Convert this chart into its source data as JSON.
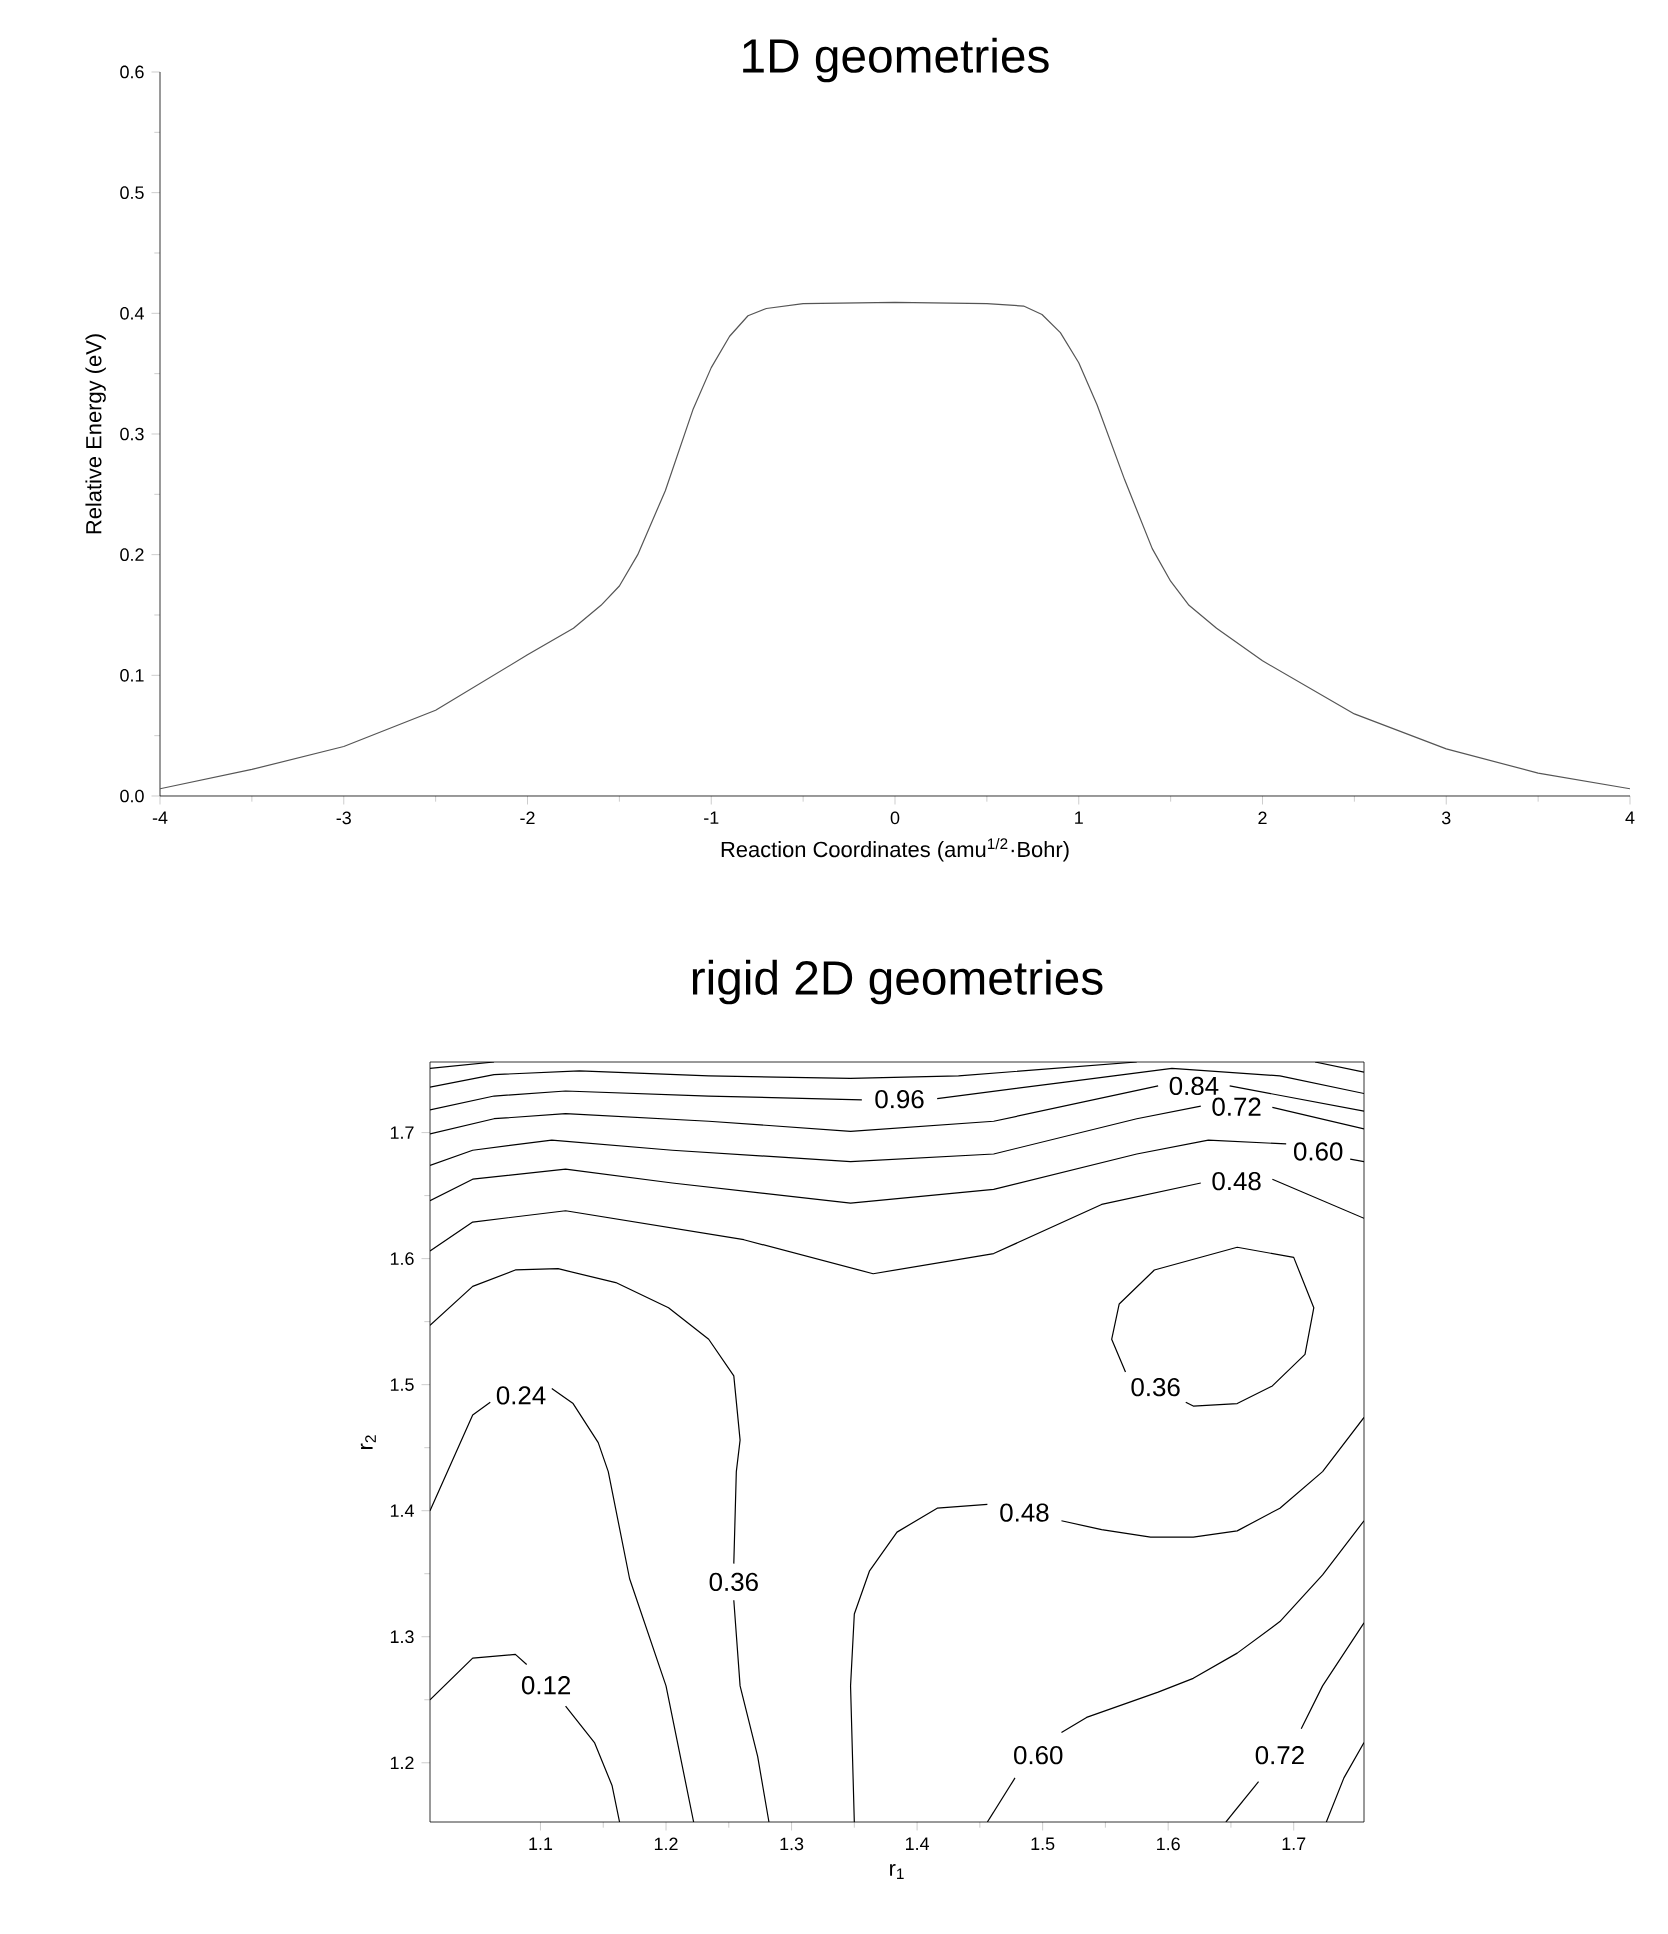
{
  "chart_data": [
    {
      "type": "line",
      "title": "1D geometries",
      "xlabel": "Reaction Coordinates (amu$^{1/2}$·Bohr)",
      "ylabel": "Relative Energy (eV)",
      "xlim": [
        -4,
        4
      ],
      "ylim": [
        0,
        0.6
      ],
      "xticks": [
        -4,
        -3,
        -2,
        -1,
        0,
        1,
        2,
        3,
        4
      ],
      "yticks": [
        {
          "value": 0,
          "label": "0.0"
        },
        0.1,
        0.2,
        0.3,
        0.4,
        0.5,
        0.6
      ],
      "series": [
        {
          "color": "#555555",
          "x": [
            -4,
            -3.5,
            -3,
            -2.5,
            -2,
            -1.75,
            -1.6,
            -1.5,
            -1.4,
            -1.25,
            -1.1,
            -1,
            -0.9,
            -0.8,
            -0.7,
            -0.5,
            0,
            0.5,
            0.7,
            0.8,
            0.9,
            1,
            1.1,
            1.25,
            1.4,
            1.5,
            1.6,
            1.75,
            2,
            2.5,
            3,
            3.5,
            4
          ],
          "values": [
            0.006,
            0.022,
            0.041,
            0.071,
            0.117,
            0.139,
            0.158,
            0.174,
            0.2,
            0.253,
            0.32,
            0.355,
            0.381,
            0.398,
            0.404,
            0.408,
            0.409,
            0.408,
            0.406,
            0.399,
            0.384,
            0.359,
            0.324,
            0.262,
            0.205,
            0.178,
            0.158,
            0.139,
            0.112,
            0.068,
            0.039,
            0.019,
            0.006
          ]
        }
      ]
    },
    {
      "type": "line",
      "title": "rigid 2D geometries",
      "xlabel": "r$_{1}$",
      "ylabel": "r$_{2}$",
      "xlim": [
        1.012,
        1.756
      ],
      "ylim": [
        1.153,
        1.756
      ],
      "xticks": [
        1.1,
        1.2,
        1.3,
        1.4,
        1.5,
        1.6,
        1.7
      ],
      "yticks": [
        1.2,
        1.3,
        1.4,
        1.5,
        1.6,
        1.7
      ],
      "series": [
        {
          "color": "#000000",
          "x": [
            1.012,
            1.063
          ],
          "values": [
            1.751,
            1.756
          ]
        },
        {
          "color": "#000000",
          "x": [
            1.012,
            1.063,
            1.131,
            1.234,
            1.347,
            1.433,
            1.575
          ],
          "values": [
            1.736,
            1.746,
            1.749,
            1.745,
            1.743,
            1.745,
            1.756
          ]
        },
        {
          "color": "#000000",
          "x": [
            1.717,
            1.756
          ],
          "values": [
            1.756,
            1.748
          ]
        },
        {
          "color": "#000000",
          "x": [
            1.012,
            1.063,
            1.12,
            1.234,
            1.356
          ],
          "values": [
            1.718,
            1.729,
            1.733,
            1.729,
            1.726
          ]
        },
        {
          "color": "#000000",
          "x": [
            1.416,
            1.518,
            1.603,
            1.689,
            1.756
          ],
          "values": [
            1.727,
            1.74,
            1.751,
            1.745,
            1.731
          ]
        },
        {
          "color": "#000000",
          "x": [
            1.012,
            1.063,
            1.12,
            1.234,
            1.347,
            1.461,
            1.592
          ],
          "values": [
            1.699,
            1.711,
            1.715,
            1.709,
            1.701,
            1.709,
            1.737
          ]
        },
        {
          "color": "#000000",
          "x": [
            1.649,
            1.756
          ],
          "values": [
            1.737,
            1.717
          ]
        },
        {
          "color": "#000000",
          "x": [
            1.012,
            1.046,
            1.109,
            1.205,
            1.347,
            1.461,
            1.575,
            1.626
          ],
          "values": [
            1.674,
            1.686,
            1.694,
            1.686,
            1.677,
            1.683,
            1.711,
            1.721
          ]
        },
        {
          "color": "#000000",
          "x": [
            1.683,
            1.756
          ],
          "values": [
            1.72,
            1.703
          ]
        },
        {
          "color": "#000000",
          "x": [
            1.012,
            1.046,
            1.12,
            1.205,
            1.347,
            1.461,
            1.575,
            1.632,
            1.694
          ],
          "values": [
            1.646,
            1.663,
            1.671,
            1.66,
            1.644,
            1.655,
            1.683,
            1.694,
            1.691
          ]
        },
        {
          "color": "#000000",
          "x": [
            1.745,
            1.756
          ],
          "values": [
            1.679,
            1.677
          ]
        },
        {
          "color": "#000000",
          "x": [
            1.012,
            1.046,
            1.12,
            1.262,
            1.365,
            1.461,
            1.547,
            1.626
          ],
          "values": [
            1.606,
            1.629,
            1.638,
            1.615,
            1.588,
            1.604,
            1.643,
            1.66
          ]
        },
        {
          "color": "#000000",
          "x": [
            1.683,
            1.756
          ],
          "values": [
            1.663,
            1.632
          ]
        },
        {
          "color": "#000000",
          "x": [
            1.012,
            1.046,
            1.08,
            1.114,
            1.16,
            1.202,
            1.234,
            1.254,
            1.259,
            1.256,
            1.254
          ],
          "values": [
            1.547,
            1.578,
            1.591,
            1.592,
            1.581,
            1.561,
            1.536,
            1.507,
            1.456,
            1.431,
            1.358
          ]
        },
        {
          "color": "#000000",
          "x": [
            1.254,
            1.259,
            1.273,
            1.282
          ],
          "values": [
            1.329,
            1.261,
            1.205,
            1.153
          ]
        },
        {
          "color": "#000000",
          "x": [
            1.012,
            1.046,
            1.06
          ],
          "values": [
            1.4,
            1.476,
            1.486
          ]
        },
        {
          "color": "#000000",
          "x": [
            1.109,
            1.126,
            1.146,
            1.154,
            1.171,
            1.2,
            1.222
          ],
          "values": [
            1.497,
            1.485,
            1.454,
            1.431,
            1.346,
            1.261,
            1.153
          ]
        },
        {
          "color": "#000000",
          "x": [
            1.012,
            1.046,
            1.08,
            1.089
          ],
          "values": [
            1.25,
            1.283,
            1.286,
            1.278
          ]
        },
        {
          "color": "#000000",
          "x": [
            1.12,
            1.143,
            1.157,
            1.163
          ],
          "values": [
            1.245,
            1.216,
            1.182,
            1.153
          ]
        },
        {
          "color": "#000000",
          "x": [
            1.35,
            1.347,
            1.35,
            1.362,
            1.384,
            1.416,
            1.456
          ],
          "values": [
            1.153,
            1.261,
            1.318,
            1.352,
            1.383,
            1.402,
            1.405
          ]
        },
        {
          "color": "#000000",
          "x": [
            1.515,
            1.547,
            1.586,
            1.62,
            1.655,
            1.689,
            1.723,
            1.756
          ],
          "values": [
            1.392,
            1.385,
            1.379,
            1.379,
            1.384,
            1.402,
            1.431,
            1.474
          ]
        },
        {
          "color": "#000000",
          "x": [
            1.456,
            1.478
          ],
          "values": [
            1.153,
            1.188
          ]
        },
        {
          "color": "#000000",
          "x": [
            1.515,
            1.535,
            1.592,
            1.62,
            1.655,
            1.689,
            1.723,
            1.756
          ],
          "values": [
            1.224,
            1.236,
            1.256,
            1.267,
            1.287,
            1.312,
            1.349,
            1.392
          ]
        },
        {
          "color": "#000000",
          "x": [
            1.646,
            1.672
          ],
          "values": [
            1.153,
            1.185
          ]
        },
        {
          "color": "#000000",
          "x": [
            1.706,
            1.723,
            1.756
          ],
          "values": [
            1.227,
            1.261,
            1.311
          ]
        },
        {
          "color": "#000000",
          "x": [
            1.726,
            1.74,
            1.756
          ],
          "values": [
            1.153,
            1.188,
            1.216
          ]
        },
        {
          "color": "#000000",
          "x": [
            1.566,
            1.555,
            1.561,
            1.589,
            1.655,
            1.7,
            1.716,
            1.709,
            1.683,
            1.655,
            1.62,
            1.614
          ],
          "values": [
            1.51,
            1.536,
            1.564,
            1.591,
            1.609,
            1.601,
            1.561,
            1.524,
            1.499,
            1.485,
            1.483,
            1.486
          ]
        }
      ],
      "annotations": [
        {
          "text": "0.96",
          "x": 1.356,
          "y": 1.726
        },
        {
          "text": "0.84",
          "x": 1.592,
          "y": 1.737
        },
        {
          "text": "0.72",
          "x": 1.626,
          "y": 1.721
        },
        {
          "text": "0.60",
          "x": 1.694,
          "y": 1.691
        },
        {
          "text": "0.48",
          "x": 1.626,
          "y": 1.66
        },
        {
          "text": "0.36",
          "x": 1.614,
          "y": 1.486
        },
        {
          "text": "0.24",
          "x": 1.06,
          "y": 1.486
        },
        {
          "text": "0.36",
          "x": 1.254,
          "y": 1.358
        },
        {
          "text": "0.12",
          "x": 1.089,
          "y": 1.278
        },
        {
          "text": "0.48",
          "x": 1.456,
          "y": 1.405
        },
        {
          "text": "0.60",
          "x": 1.478,
          "y": 1.188
        },
        {
          "text": "0.72",
          "x": 1.672,
          "y": 1.185
        }
      ]
    }
  ]
}
